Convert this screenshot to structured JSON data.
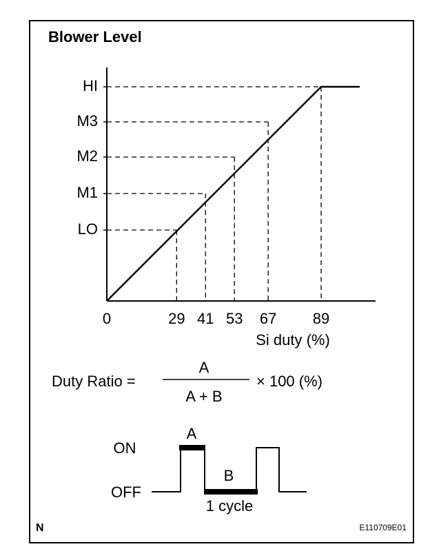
{
  "title": "Blower Level",
  "graph": {
    "levels": [
      "LO",
      "M1",
      "M2",
      "M3",
      "HI"
    ],
    "origin_label": "0",
    "duty_values": [
      "29",
      "41",
      "53",
      "67",
      "89"
    ],
    "x_label": "Si duty (%)"
  },
  "formula": {
    "left": "Duty Ratio =",
    "numerator": "A",
    "denominator": "A + B",
    "right": "× 100 (%)"
  },
  "waveform": {
    "on_label": "ON",
    "off_label": "OFF",
    "a_label": "A",
    "b_label": "B",
    "cycle_label": "1 cycle"
  },
  "footer": {
    "left": "N",
    "right": "E110709E01"
  }
}
